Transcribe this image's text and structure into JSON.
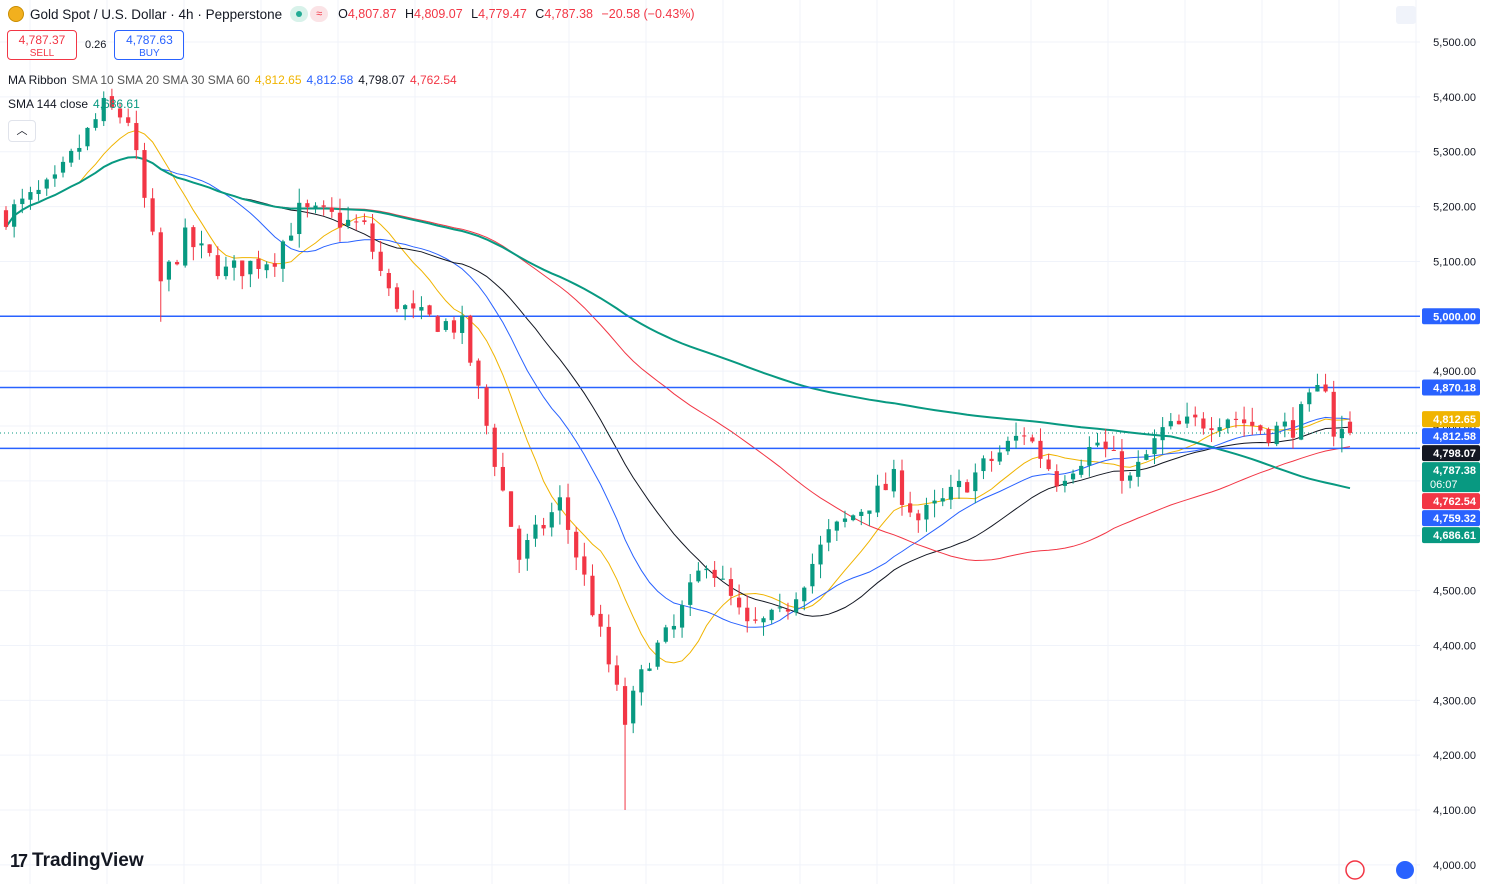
{
  "header": {
    "title": "Gold Spot / U.S. Dollar · 4h · Pepperstone",
    "ohlc": [
      {
        "k": "O",
        "v": "4,807.87"
      },
      {
        "k": "H",
        "v": "4,809.07"
      },
      {
        "k": "L",
        "v": "4,779.47"
      },
      {
        "k": "C",
        "v": "4,787.38"
      },
      {
        "k": "",
        "v": "−20.58 (−0.43%)"
      }
    ]
  },
  "trade": {
    "sell_price": "4,787.37",
    "sell_label": "SELL",
    "spread": "0.26",
    "buy_price": "4,787.63",
    "buy_label": "BUY"
  },
  "indicators": {
    "ribbon_name": "MA Ribbon",
    "ribbon_params": "SMA 10 SMA 20 SMA 30 SMA 60",
    "ribbon_values": [
      "4,812.65",
      "4,812.58",
      "4,798.07",
      "4,762.54"
    ],
    "sma_name": "SMA 144 close",
    "sma_value": "4,686.61"
  },
  "brand": "TradingView",
  "colors": {
    "up": "#089981",
    "down": "#f23645",
    "sma10": "#f0b400",
    "sma20": "#2962ff",
    "sma30": "#131722",
    "sma60": "#f23645",
    "sma144": "#089981",
    "hline": "#2962ff"
  },
  "chart_data": {
    "type": "candlestick",
    "symbol": "XAUUSD",
    "timeframe": "4h",
    "ylim": [
      3990,
      5570
    ],
    "y_ticks": [
      4000,
      4100,
      4200,
      4300,
      4400,
      4500,
      4600,
      4700,
      4800,
      4900,
      5000,
      5100,
      5200,
      5300,
      5400,
      5500
    ],
    "horizontal_lines": [
      5000.0,
      4870.18,
      4759.32
    ],
    "current_price": 4787.38,
    "countdown": "06:07",
    "price_labels": [
      {
        "text": "5,000.00",
        "value": 5000.0,
        "color": "#2962ff"
      },
      {
        "text": "4,870.18",
        "value": 4870.18,
        "color": "#2962ff"
      },
      {
        "text": "4,812.65",
        "value": 4812.65,
        "color": "#f0b400"
      },
      {
        "text": "4,812.58",
        "value": 4812.58,
        "color": "#2962ff"
      },
      {
        "text": "4,798.07",
        "value": 4798.07,
        "color": "#131722"
      },
      {
        "text": "4,787.38",
        "value": 4787.38,
        "color": "#089981"
      },
      {
        "text": "4,762.54",
        "value": 4762.54,
        "color": "#f23645"
      },
      {
        "text": "4,759.32",
        "value": 4759.32,
        "color": "#2962ff"
      },
      {
        "text": "4,686.61",
        "value": 4686.61,
        "color": "#089981"
      }
    ],
    "price_keypoints": [
      [
        0,
        5185
      ],
      [
        6,
        5240
      ],
      [
        12,
        5380
      ],
      [
        15,
        5360
      ],
      [
        19,
        5060
      ],
      [
        22,
        5140
      ],
      [
        27,
        5080
      ],
      [
        33,
        5110
      ],
      [
        36,
        5190
      ],
      [
        40,
        5180
      ],
      [
        44,
        5160
      ],
      [
        47,
        5040
      ],
      [
        50,
        5000
      ],
      [
        56,
        4980
      ],
      [
        63,
        4560
      ],
      [
        68,
        4660
      ],
      [
        71,
        4520
      ],
      [
        76,
        4260
      ],
      [
        79,
        4380
      ],
      [
        82,
        4430
      ],
      [
        86,
        4560
      ],
      [
        91,
        4430
      ],
      [
        95,
        4450
      ],
      [
        101,
        4600
      ],
      [
        109,
        4700
      ],
      [
        112,
        4630
      ],
      [
        115,
        4660
      ],
      [
        125,
        4790
      ],
      [
        129,
        4705
      ],
      [
        134,
        4770
      ],
      [
        138,
        4700
      ],
      [
        142,
        4790
      ],
      [
        150,
        4820
      ],
      [
        155,
        4790
      ],
      [
        158,
        4800
      ],
      [
        162,
        4880
      ],
      [
        163,
        4790
      ],
      [
        165,
        4787.38
      ]
    ],
    "series": [
      {
        "name": "SMA 10",
        "last": 4812.65
      },
      {
        "name": "SMA 20",
        "last": 4812.58
      },
      {
        "name": "SMA 30",
        "last": 4798.07
      },
      {
        "name": "SMA 60",
        "last": 4762.54
      },
      {
        "name": "SMA 144 close",
        "last": 4686.61
      }
    ]
  }
}
